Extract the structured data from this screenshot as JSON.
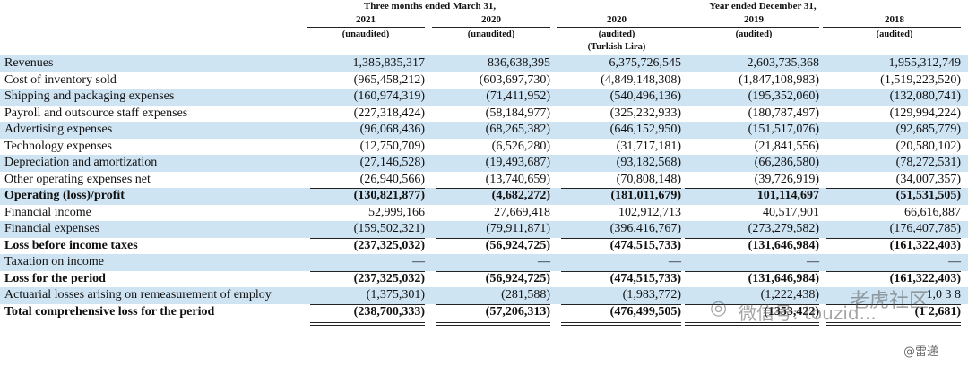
{
  "header": {
    "group_three_months": "Three months ended March 31,",
    "group_year": "Year ended December 31,",
    "columns": [
      {
        "year": "2021",
        "note": "(unaudited)"
      },
      {
        "year": "2020",
        "note": "(unaudited)"
      },
      {
        "year": "2020",
        "note": "(audited)",
        "currency": "(Turkish Lira)"
      },
      {
        "year": "2019",
        "note": "(audited)"
      },
      {
        "year": "2018",
        "note": "(audited)"
      }
    ]
  },
  "rows": [
    {
      "label": "Revenues",
      "values": [
        "1,385,835,317",
        "836,638,395",
        "6,375,726,545",
        "2,603,735,368",
        "1,955,312,749"
      ],
      "bold": false,
      "shade": true
    },
    {
      "label": "Cost of inventory sold",
      "values": [
        "(965,458,212)",
        "(603,697,730)",
        "(4,849,148,308)",
        "(1,847,108,983)",
        "(1,519,223,520)"
      ],
      "bold": false,
      "shade": false
    },
    {
      "label": "Shipping and packaging expenses",
      "values": [
        "(160,974,319)",
        "(71,411,952)",
        "(540,496,136)",
        "(195,352,060)",
        "(132,080,741)"
      ],
      "bold": false,
      "shade": true
    },
    {
      "label": "Payroll and outsource staff expenses",
      "values": [
        "(227,318,424)",
        "(58,184,977)",
        "(325,232,933)",
        "(180,787,497)",
        "(129,994,224)"
      ],
      "bold": false,
      "shade": false
    },
    {
      "label": "Advertising expenses",
      "values": [
        "(96,068,436)",
        "(68,265,382)",
        "(646,152,950)",
        "(151,517,076)",
        "(92,685,779)"
      ],
      "bold": false,
      "shade": true
    },
    {
      "label": "Technology expenses",
      "values": [
        "(12,750,709)",
        "(6,526,280)",
        "(31,717,181)",
        "(21,841,556)",
        "(20,580,102)"
      ],
      "bold": false,
      "shade": false
    },
    {
      "label": "Depreciation and amortization",
      "values": [
        "(27,146,528)",
        "(19,493,687)",
        "(93,182,568)",
        "(66,286,580)",
        "(78,272,531)"
      ],
      "bold": false,
      "shade": true
    },
    {
      "label": "Other operating expenses net",
      "values": [
        "(26,940,566)",
        "(13,740,659)",
        "(70,808,148)",
        "(39,726,919)",
        "(34,007,357)"
      ],
      "bold": false,
      "shade": false
    },
    {
      "label": "Operating (loss)/profit",
      "values": [
        "(130,821,877)",
        "(4,682,272)",
        "(181,011,679)",
        "101,114,697",
        "(51,531,505)"
      ],
      "bold": true,
      "shade": true
    },
    {
      "label": "Financial income",
      "values": [
        "52,999,166",
        "27,669,418",
        "102,912,713",
        "40,517,901",
        "66,616,887"
      ],
      "bold": false,
      "shade": false
    },
    {
      "label": "Financial expenses",
      "values": [
        "(159,502,321)",
        "(79,911,871)",
        "(396,416,767)",
        "(273,279,582)",
        "(176,407,785)"
      ],
      "bold": false,
      "shade": true
    },
    {
      "label": "Loss before income taxes",
      "values": [
        "(237,325,032)",
        "(56,924,725)",
        "(474,515,733)",
        "(131,646,984)",
        "(161,322,403)"
      ],
      "bold": true,
      "shade": false
    },
    {
      "label": "Taxation on income",
      "values": [
        "—",
        "—",
        "—",
        "—",
        "—"
      ],
      "bold": false,
      "shade": true
    },
    {
      "label": "Loss for the period",
      "values": [
        "(237,325,032)",
        "(56,924,725)",
        "(474,515,733)",
        "(131,646,984)",
        "(161,322,403)"
      ],
      "bold": true,
      "shade": false
    },
    {
      "label": "Actuarial losses arising on remeasurement of employ",
      "values": [
        "(1,375,301)",
        "(281,588)",
        "(1,983,772)",
        "(1,222,438)",
        "1,0 3 8"
      ],
      "bold": false,
      "shade": true
    },
    {
      "label": "Total comprehensive loss for the period",
      "values": [
        "(238,700,333)",
        "(57,206,313)",
        "(476,499,505)",
        "(1353,422)",
        "(1 2,681)"
      ],
      "bold": true,
      "shade": false
    }
  ],
  "watermark": {
    "text": "微信号: touzid...",
    "brand": "老虎社区",
    "handle": "@雷递"
  }
}
